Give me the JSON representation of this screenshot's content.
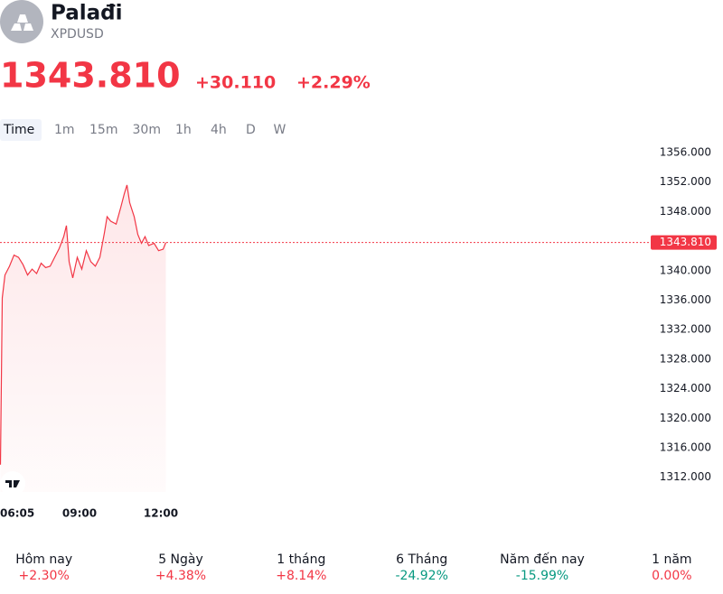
{
  "header": {
    "title": "Palađi",
    "symbol": "XPDUSD",
    "price": "1343.810",
    "change": "+30.110",
    "change_percent": "+2.29%"
  },
  "tabs": {
    "items": [
      "Time",
      "1m",
      "15m",
      "30m",
      "1h",
      "4h",
      "D",
      "W"
    ],
    "active": "Time"
  },
  "chart_data": {
    "type": "line",
    "color": "#f23645",
    "x": [
      365,
      369,
      375,
      385,
      395,
      405,
      415,
      425,
      435,
      445,
      455,
      465,
      475,
      485,
      495,
      505,
      511,
      517,
      525,
      535,
      545,
      555,
      565,
      575,
      585,
      595,
      601,
      609,
      621,
      631,
      639,
      645,
      651,
      661,
      669,
      677,
      685,
      693,
      705,
      715,
      725,
      731
    ],
    "values": [
      1313.7,
      1336.3,
      1339.4,
      1340.6,
      1342.1,
      1341.8,
      1340.8,
      1339.4,
      1340.2,
      1339.6,
      1341.0,
      1340.4,
      1340.6,
      1341.8,
      1343.0,
      1344.6,
      1346.1,
      1341.2,
      1339.0,
      1341.8,
      1340.2,
      1342.7,
      1341.2,
      1340.6,
      1341.8,
      1345.1,
      1347.3,
      1346.7,
      1346.3,
      1348.5,
      1350.4,
      1351.6,
      1349.2,
      1347.3,
      1344.9,
      1343.7,
      1344.6,
      1343.4,
      1343.7,
      1342.7,
      1342.9,
      1343.81
    ],
    "xlim": [
      364,
      1804
    ],
    "xticks": [
      {
        "value": 365,
        "label": "06:05"
      },
      {
        "value": 540,
        "label": "09:00"
      },
      {
        "value": 720,
        "label": "12:00"
      }
    ],
    "ylim": [
      1310,
      1358
    ],
    "yticks": [
      {
        "value": 1312,
        "label": "1312.000"
      },
      {
        "value": 1316,
        "label": "1316.000"
      },
      {
        "value": 1320,
        "label": "1320.000"
      },
      {
        "value": 1324,
        "label": "1324.000"
      },
      {
        "value": 1328,
        "label": "1328.000"
      },
      {
        "value": 1332,
        "label": "1332.000"
      },
      {
        "value": 1336,
        "label": "1336.000"
      },
      {
        "value": 1340,
        "label": "1340.000"
      },
      {
        "value": 1344,
        "label": "1344.000"
      },
      {
        "value": 1348,
        "label": "1348.000"
      },
      {
        "value": 1352,
        "label": "1352.000"
      },
      {
        "value": 1356,
        "label": "1356.000"
      }
    ],
    "price_line": {
      "value": 1343.81,
      "label": "1343.810"
    }
  },
  "performance": [
    {
      "label": "Hôm nay",
      "value": "+2.30%",
      "color": "#f23645"
    },
    {
      "label": "5 Ngày",
      "value": "+4.38%",
      "color": "#f23645"
    },
    {
      "label": "1 tháng",
      "value": "+8.14%",
      "color": "#f23645"
    },
    {
      "label": "6 Tháng",
      "value": "-24.92%",
      "color": "#089981"
    },
    {
      "label": "Năm đến nay",
      "value": "-15.99%",
      "color": "#089981"
    },
    {
      "label": "1 năm",
      "value": "0.00%",
      "color": "#f23645"
    }
  ]
}
